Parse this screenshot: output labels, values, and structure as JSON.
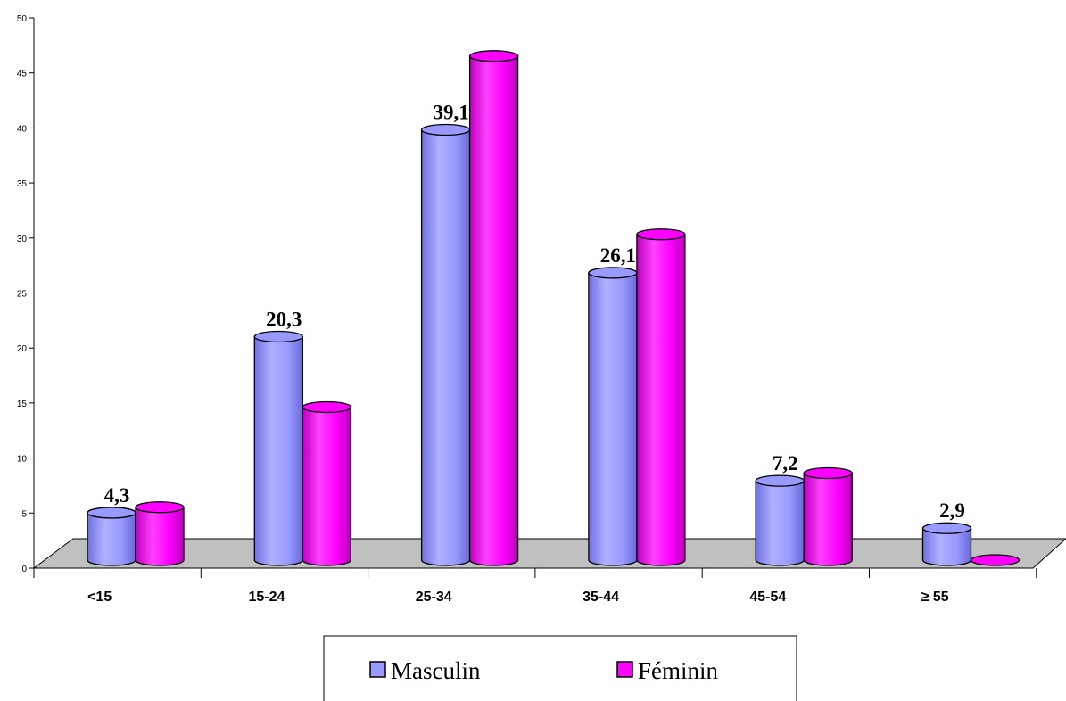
{
  "chart_data": {
    "type": "bar",
    "style": "3d-cylinder",
    "categories": [
      "<15",
      "15-24",
      "25-34",
      "35-44",
      "45-54",
      "≥ 55"
    ],
    "series": [
      {
        "name": "Masculin",
        "values": [
          4.3,
          20.3,
          39.1,
          26.1,
          7.2,
          2.9
        ],
        "color": "#9999ff"
      },
      {
        "name": "Féminin",
        "values": [
          4.8,
          13.9,
          45.8,
          29.6,
          7.9,
          0
        ],
        "color": "#ff00ff"
      }
    ],
    "data_labels": [
      "4,3",
      "20,3",
      "39,1",
      "26,1",
      "7,2",
      "2,9"
    ],
    "y_ticks": [
      "0",
      "5",
      "10",
      "15",
      "20",
      "25",
      "30",
      "35",
      "40",
      "45",
      "50"
    ],
    "ylim": [
      0,
      50
    ],
    "floor_color": "#c0c0c0",
    "grid": false,
    "legend_position": "bottom",
    "title": "",
    "xlabel": "",
    "ylabel": ""
  }
}
